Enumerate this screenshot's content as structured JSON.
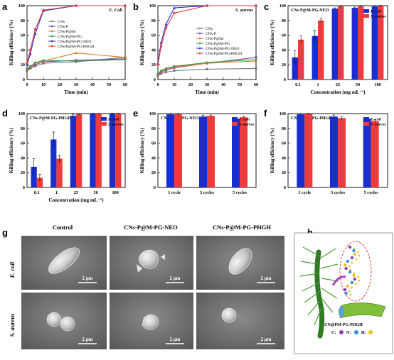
{
  "panels": {
    "a": "a",
    "b": "b",
    "c": "c",
    "d": "d",
    "e": "e",
    "f": "f",
    "g": "g",
    "h": "h"
  },
  "colors": {
    "CNs": "#7a7a7a",
    "CNs-P": "#7b3fa0",
    "CNs-P@M": "#e07a1f",
    "CNs-P@M-PG": "#2e9e4a",
    "CNs-P@M-PG-NEO": "#1a2ed0",
    "CNs-P@M-PG-PHGH": "#e83b3b",
    "ecoli_bar": "#1a2ed0",
    "saureus_bar": "#ee3b3b"
  },
  "chart_data": [
    {
      "panel": "a",
      "type": "line",
      "annotation": "E. Coli",
      "xlabel": "Time (min)",
      "ylabel": "Killing efficiency (%)",
      "xlim": [
        0,
        60
      ],
      "ylim": [
        0,
        100
      ],
      "xticks": [
        0,
        10,
        20,
        30,
        40,
        50,
        60
      ],
      "yticks": [
        0,
        20,
        40,
        60,
        80,
        100
      ],
      "x": [
        0,
        2,
        5,
        10,
        30,
        60
      ],
      "legend": "top-left",
      "series": [
        {
          "name": "CNs",
          "values": [
            12,
            15,
            18,
            22,
            24,
            30
          ]
        },
        {
          "name": "CNs-P",
          "values": [
            13,
            16,
            20,
            24,
            26,
            28
          ]
        },
        {
          "name": "CNs-P@M",
          "values": [
            14,
            17,
            22,
            25,
            36,
            30
          ]
        },
        {
          "name": "CNs-P@M-PG",
          "values": [
            15,
            18,
            23,
            26,
            25,
            27
          ]
        },
        {
          "name": "CNs-P@M-PG-NEO",
          "values": [
            20,
            35,
            62,
            93,
            100,
            100
          ]
        },
        {
          "name": "CNs-P@M-PG-PHGH",
          "values": [
            22,
            40,
            68,
            94,
            100,
            100
          ]
        }
      ]
    },
    {
      "panel": "b",
      "type": "line",
      "annotation": "S. aureus",
      "xlabel": "Time (min)",
      "ylabel": "Killing efficiency (%)",
      "xlim": [
        0,
        60
      ],
      "ylim": [
        0,
        100
      ],
      "xticks": [
        0,
        10,
        20,
        30,
        40,
        50,
        60
      ],
      "yticks": [
        0,
        20,
        40,
        60,
        80,
        100
      ],
      "x": [
        0,
        2,
        5,
        10,
        30,
        60
      ],
      "legend": "center-right",
      "series": [
        {
          "name": "CNs",
          "values": [
            5,
            8,
            10,
            12,
            14,
            15
          ]
        },
        {
          "name": "CNs-P",
          "values": [
            6,
            10,
            13,
            16,
            22,
            30
          ]
        },
        {
          "name": "CNs-P@M",
          "values": [
            7,
            11,
            14,
            17,
            22,
            25
          ]
        },
        {
          "name": "CNs-P@M-PG",
          "values": [
            8,
            12,
            15,
            18,
            23,
            27
          ]
        },
        {
          "name": "CNs-P@M-PG-NEO",
          "values": [
            22,
            50,
            75,
            97,
            100,
            100
          ]
        },
        {
          "name": "CNs-P@M-PG-PHGH",
          "values": [
            20,
            45,
            70,
            90,
            100,
            100
          ]
        }
      ]
    },
    {
      "panel": "c",
      "type": "bar",
      "annotation": "CNs-P@M-PG-NEO",
      "xlabel": "Concentration (mg mL⁻¹)",
      "ylabel": "Killing efficiency (%)",
      "ylim": [
        0,
        100
      ],
      "yticks": [
        0,
        20,
        40,
        60,
        80,
        100
      ],
      "categories": [
        "0.1",
        "1",
        "25",
        "50",
        "100"
      ],
      "legend": "top-right",
      "series": [
        {
          "name": "E. coli",
          "values": [
            30,
            59,
            96,
            97,
            99
          ],
          "errors": [
            9,
            8,
            1,
            1,
            1
          ]
        },
        {
          "name": "S. aureus",
          "values": [
            54,
            80,
            99,
            99,
            100
          ],
          "errors": [
            5,
            3,
            0.5,
            0.5,
            0.5
          ]
        }
      ]
    },
    {
      "panel": "d",
      "type": "bar",
      "annotation": "CNs-P@M-PG-PHGH",
      "xlabel": "Concentration (mg mL⁻¹)",
      "ylabel": "Killing efficiency (%)",
      "ylim": [
        0,
        100
      ],
      "yticks": [
        0,
        20,
        40,
        60,
        80,
        100
      ],
      "categories": [
        "0.1",
        "1",
        "25",
        "50",
        "100"
      ],
      "legend": "top-right",
      "series": [
        {
          "name": "E. coli",
          "values": [
            28,
            65,
            97,
            100,
            100
          ],
          "errors": [
            11,
            10,
            2,
            0.5,
            0.5
          ]
        },
        {
          "name": "S. aureus",
          "values": [
            13,
            39,
            99,
            100,
            100
          ],
          "errors": [
            5,
            5,
            0.5,
            0.5,
            0.5
          ]
        }
      ]
    },
    {
      "panel": "e",
      "type": "bar",
      "annotation": "CNs-P@M-PG-NEO",
      "xlabel": "",
      "ylabel": "Killing efficiency (%)",
      "ylim": [
        0,
        100
      ],
      "yticks": [
        0,
        20,
        40,
        60,
        80,
        100
      ],
      "categories": [
        "1 cycle",
        "3 cycles",
        "5 cycles"
      ],
      "legend": "top-right",
      "series": [
        {
          "name": "E. coli",
          "values": [
            99,
            96,
            93
          ],
          "errors": [
            1,
            1.5,
            1.5
          ]
        },
        {
          "name": "S. aureus",
          "values": [
            99,
            97,
            95
          ],
          "errors": [
            0.5,
            1,
            1.5
          ]
        }
      ]
    },
    {
      "panel": "f",
      "type": "bar",
      "annotation": "CNs-P@M-PG-PHGH",
      "xlabel": "",
      "ylabel": "Killing efficiency (%)",
      "ylim": [
        0,
        100
      ],
      "yticks": [
        0,
        20,
        40,
        60,
        80,
        100
      ],
      "categories": [
        "1 cycle",
        "3 cycles",
        "5 cycles"
      ],
      "legend": "top-right",
      "series": [
        {
          "name": "E. coli",
          "values": [
            99,
            96,
            93
          ],
          "errors": [
            1,
            2,
            1
          ]
        },
        {
          "name": "S. aureus",
          "values": [
            100,
            94,
            90
          ],
          "errors": [
            0.5,
            1.5,
            2
          ]
        }
      ]
    }
  ],
  "sem": {
    "columns": [
      "Control",
      "CNs-P@M-PG-NEO",
      "CNs-P@M-PG-PHGH"
    ],
    "rows": [
      "E. coli",
      "S. aureus"
    ],
    "scale_bar": "2 μm"
  },
  "schematic": {
    "label": "CN@PM-PG-PHGH",
    "legend_c": "C:",
    "legend_n": "N:",
    "legend_h": "H:",
    "color_c": "#8a3fb0",
    "color_n": "#2f8fe0",
    "color_h": "#f0c020",
    "hair_color": "#3a8a2a"
  }
}
